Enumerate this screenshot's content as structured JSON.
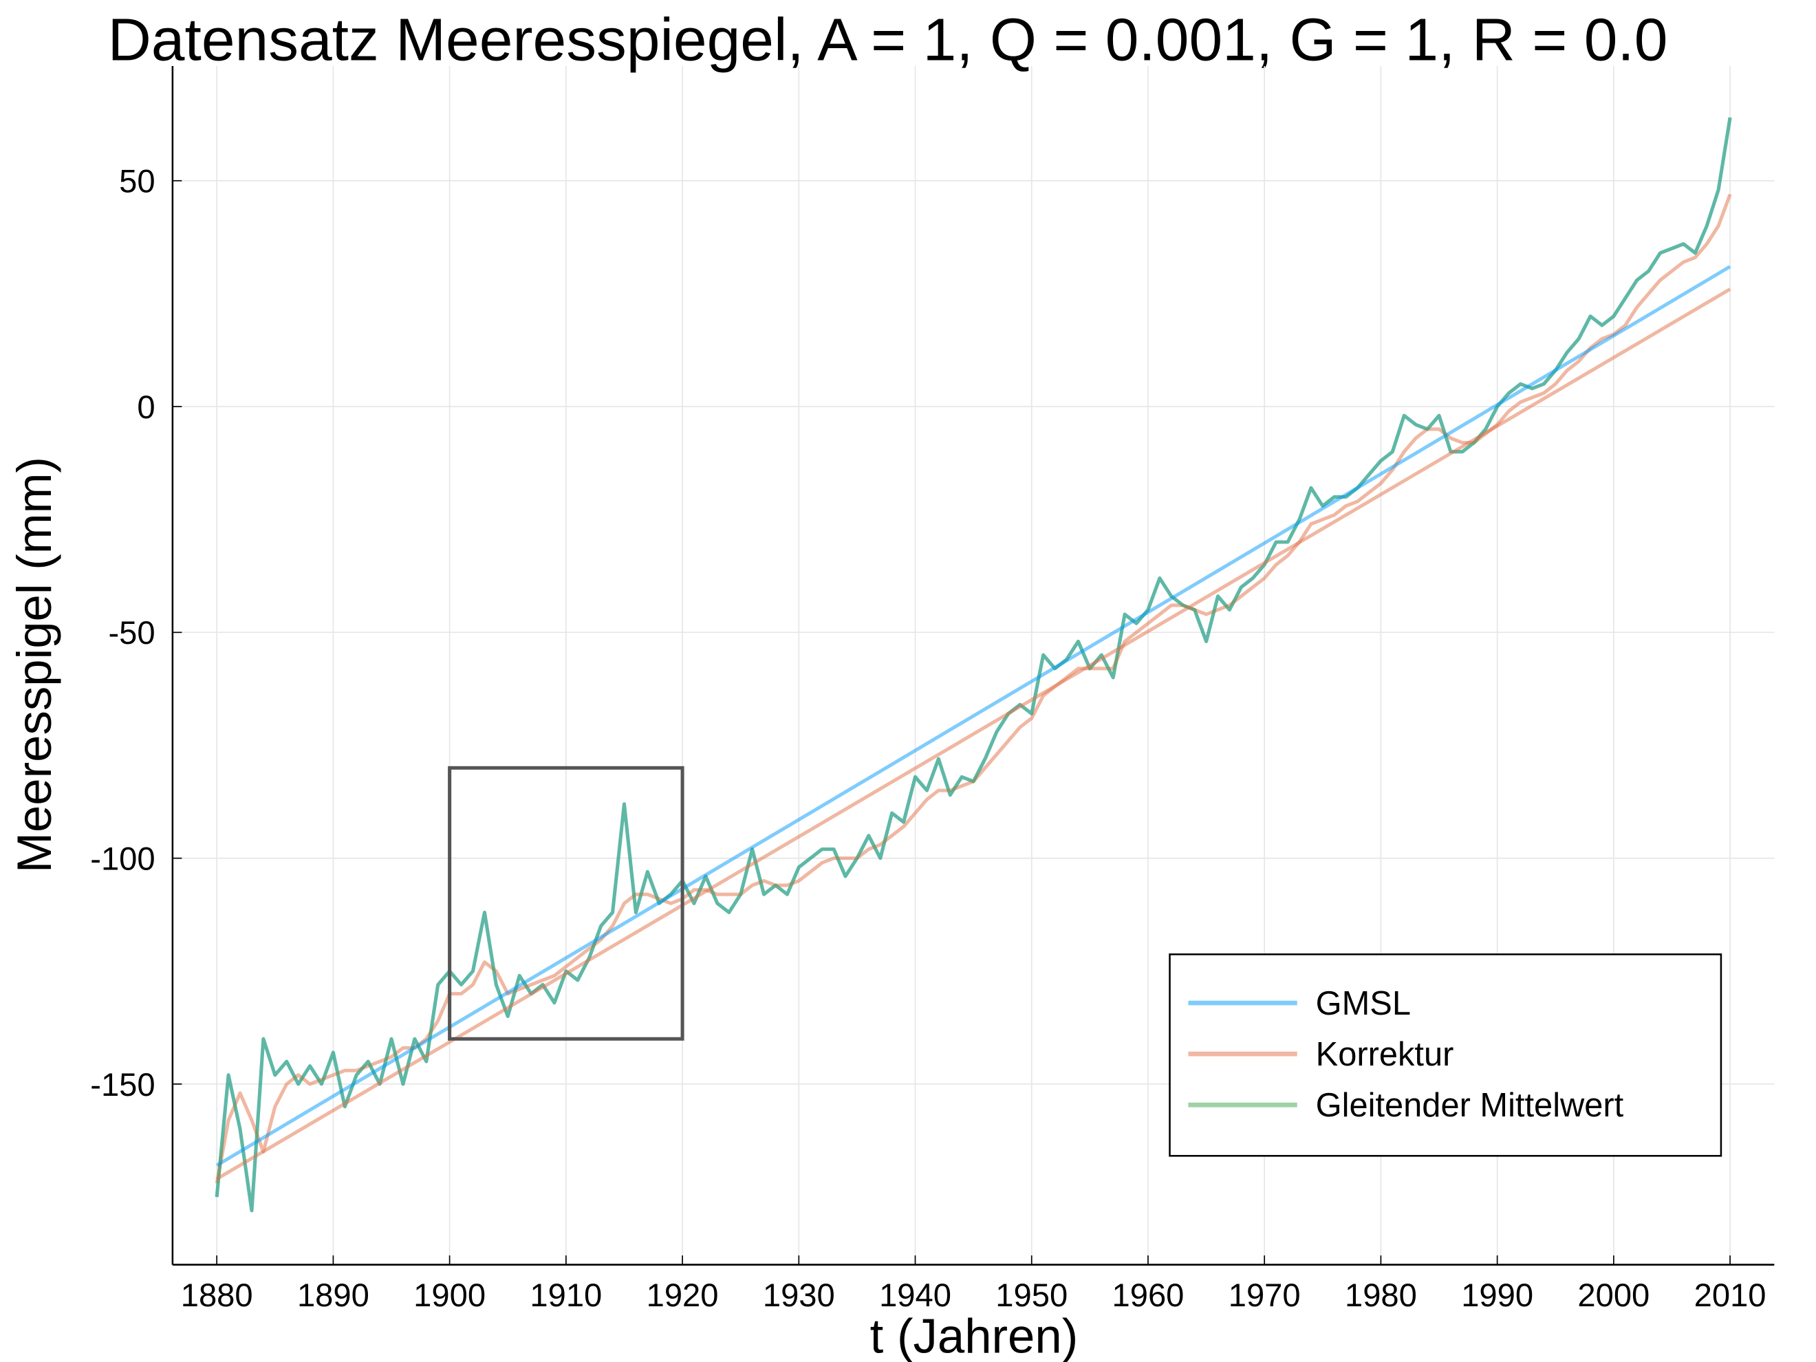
{
  "chart_data": {
    "type": "line",
    "title": "Datensatz Meeresspiegel, A = 1, Q = 0.001, G = 1, R = 0.0",
    "xlabel": "t (Jahren)",
    "ylabel": "Meeresspigel (mm)",
    "xlim": [
      1876.2,
      2013.8
    ],
    "ylim": [
      -190,
      75.4
    ],
    "xticks": [
      1880,
      1890,
      1900,
      1910,
      1920,
      1930,
      1940,
      1950,
      1960,
      1970,
      1980,
      1990,
      2000,
      2010
    ],
    "yticks": [
      -150,
      -100,
      -50,
      0,
      50
    ],
    "grid": true,
    "legend": "lower right",
    "x": [
      1880,
      1881,
      1882,
      1883,
      1884,
      1885,
      1886,
      1887,
      1888,
      1889,
      1890,
      1891,
      1892,
      1893,
      1894,
      1895,
      1896,
      1897,
      1898,
      1899,
      1900,
      1901,
      1902,
      1903,
      1904,
      1905,
      1906,
      1907,
      1908,
      1909,
      1910,
      1911,
      1912,
      1913,
      1914,
      1915,
      1916,
      1917,
      1918,
      1919,
      1920,
      1921,
      1922,
      1923,
      1924,
      1925,
      1926,
      1927,
      1928,
      1929,
      1930,
      1931,
      1932,
      1933,
      1934,
      1935,
      1936,
      1937,
      1938,
      1939,
      1940,
      1941,
      1942,
      1943,
      1944,
      1945,
      1946,
      1947,
      1948,
      1949,
      1950,
      1951,
      1952,
      1953,
      1954,
      1955,
      1956,
      1957,
      1958,
      1959,
      1960,
      1961,
      1962,
      1963,
      1964,
      1965,
      1966,
      1967,
      1968,
      1969,
      1970,
      1971,
      1972,
      1973,
      1974,
      1975,
      1976,
      1977,
      1978,
      1979,
      1980,
      1981,
      1982,
      1983,
      1984,
      1985,
      1986,
      1987,
      1988,
      1989,
      1990,
      1991,
      1992,
      1993,
      1994,
      1995,
      1996,
      1997,
      1998,
      1999,
      2000,
      2001,
      2002,
      2003,
      2004,
      2005,
      2006,
      2007,
      2008,
      2009,
      2010
    ],
    "series": [
      {
        "name": "GMSL",
        "color": "#009af9",
        "values": [
          -175,
          -148,
          -160,
          -178,
          -140,
          -148,
          -145,
          -150,
          -146,
          -150,
          -143,
          -155,
          -148,
          -145,
          -150,
          -140,
          -150,
          -140,
          -145,
          -128,
          -125,
          -128,
          -125,
          -112,
          -128,
          -135,
          -126,
          -130,
          -128,
          -132,
          -125,
          -127,
          -122,
          -115,
          -112,
          -88,
          -112,
          -103,
          -110,
          -108,
          -105,
          -110,
          -104,
          -110,
          -112,
          -108,
          -98,
          -108,
          -106,
          -108,
          -102,
          -100,
          -98,
          -98,
          -104,
          -100,
          -95,
          -100,
          -90,
          -92,
          -82,
          -85,
          -78,
          -86,
          -82,
          -83,
          -78,
          -72,
          -68,
          -66,
          -68,
          -55,
          -58,
          -56,
          -52,
          -58,
          -55,
          -60,
          -46,
          -48,
          -45,
          -38,
          -42,
          -44,
          -45,
          -52,
          -42,
          -45,
          -40,
          -38,
          -35,
          -30,
          -30,
          -25,
          -18,
          -22,
          -20,
          -20,
          -18,
          -15,
          -12,
          -10,
          -2,
          -4,
          -5,
          -2,
          -10,
          -10,
          -8,
          -5,
          0,
          3,
          5,
          4,
          5,
          8,
          12,
          15,
          20,
          18,
          20,
          24,
          28,
          30,
          34,
          35,
          36,
          34,
          40,
          48,
          64
        ]
      },
      {
        "name": "Korrektur",
        "color": "#e26f46",
        "values": [
          -172,
          -158,
          -152,
          -158,
          -165,
          -155,
          -150,
          -148,
          -150,
          -149,
          -148,
          -147,
          -147,
          -146,
          -145,
          -144,
          -142,
          -142,
          -140,
          -136,
          -130,
          -130,
          -128,
          -123,
          -125,
          -130,
          -129,
          -128,
          -127,
          -126,
          -124,
          -122,
          -120,
          -118,
          -115,
          -110,
          -108,
          -108,
          -109,
          -110,
          -109,
          -107,
          -107,
          -108,
          -108,
          -108,
          -106,
          -105,
          -106,
          -106,
          -105,
          -103,
          -101,
          -100,
          -100,
          -100,
          -98,
          -97,
          -95,
          -93,
          -90,
          -87,
          -85,
          -85,
          -84,
          -83,
          -80,
          -77,
          -74,
          -71,
          -69,
          -64,
          -62,
          -60,
          -58,
          -58,
          -58,
          -58,
          -52,
          -50,
          -48,
          -46,
          -44,
          -44,
          -45,
          -46,
          -45,
          -44,
          -42,
          -40,
          -38,
          -35,
          -33,
          -30,
          -26,
          -25,
          -24,
          -22,
          -21,
          -19,
          -17,
          -14,
          -10,
          -7,
          -5,
          -5,
          -7,
          -8,
          -8,
          -6,
          -4,
          -1,
          1,
          2,
          3,
          5,
          8,
          10,
          13,
          15,
          16,
          18,
          22,
          25,
          28,
          30,
          32,
          33,
          36,
          40,
          47
        ]
      },
      {
        "name": "Gleitender Mittelwert",
        "color": "#3da44d",
        "values": [
          -175,
          -148,
          -160,
          -178,
          -140,
          -148,
          -145,
          -150,
          -146,
          -150,
          -143,
          -155,
          -148,
          -145,
          -150,
          -140,
          -150,
          -140,
          -145,
          -128,
          -125,
          -128,
          -125,
          -112,
          -128,
          -135,
          -126,
          -130,
          -128,
          -132,
          -125,
          -127,
          -122,
          -115,
          -112,
          -88,
          -112,
          -103,
          -110,
          -108,
          -105,
          -110,
          -104,
          -110,
          -112,
          -108,
          -98,
          -108,
          -106,
          -108,
          -102,
          -100,
          -98,
          -98,
          -104,
          -100,
          -95,
          -100,
          -90,
          -92,
          -82,
          -85,
          -78,
          -86,
          -82,
          -83,
          -78,
          -72,
          -68,
          -66,
          -68,
          -55,
          -58,
          -56,
          -52,
          -58,
          -55,
          -60,
          -46,
          -48,
          -45,
          -38,
          -42,
          -44,
          -45,
          -52,
          -42,
          -45,
          -40,
          -38,
          -35,
          -30,
          -30,
          -25,
          -18,
          -22,
          -20,
          -20,
          -18,
          -15,
          -12,
          -10,
          -2,
          -4,
          -5,
          -2,
          -10,
          -10,
          -8,
          -5,
          0,
          3,
          5,
          4,
          5,
          8,
          12,
          15,
          20,
          18,
          20,
          24,
          28,
          30,
          34,
          35,
          36,
          34,
          40,
          48,
          64
        ]
      },
      {
        "color": "#009af9",
        "x": [
          1880,
          2010
        ],
        "values": [
          -168,
          31
        ]
      },
      {
        "color": "#e26f46",
        "x": [
          1880,
          2010
        ],
        "values": [
          -171,
          26
        ]
      }
    ],
    "highlight": {
      "xlim": [
        1900,
        1920
      ],
      "ylim": [
        -140,
        -80
      ],
      "color": "#555555"
    }
  }
}
